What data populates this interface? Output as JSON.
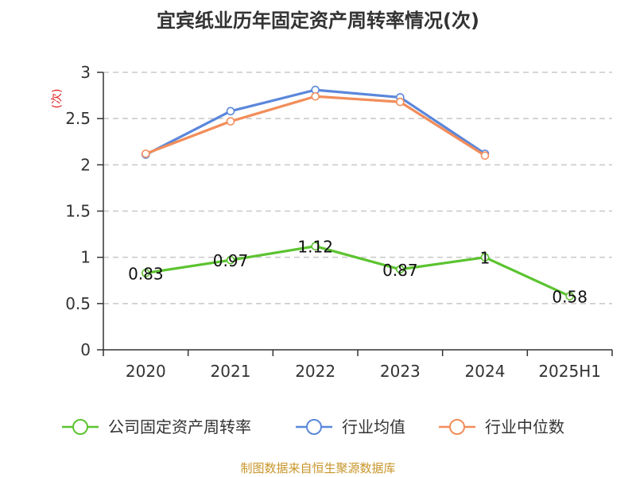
{
  "chart_data": {
    "type": "line",
    "title": "宜宾纸业历年固定资产周转率情况(次)",
    "ylabel": "(次)",
    "xlabel": "",
    "categories": [
      "2020",
      "2021",
      "2022",
      "2023",
      "2024",
      "2025H1"
    ],
    "ylim": [
      0,
      3
    ],
    "yticks": [
      0,
      0.5,
      1,
      1.5,
      2,
      2.5,
      3
    ],
    "ytick_labels": [
      "0",
      "0.5",
      "1",
      "1.5",
      "2",
      "2.5",
      "3"
    ],
    "grid": true,
    "legend_position": "bottom",
    "series": [
      {
        "name": "公司固定资产周转率",
        "color": "#5cc330",
        "values": [
          0.83,
          0.97,
          1.12,
          0.87,
          1.0,
          0.58
        ],
        "labels": [
          "0.83",
          "0.97",
          "1.12",
          "0.87",
          "1",
          "0.58"
        ]
      },
      {
        "name": "行业均值",
        "color": "#5b87db",
        "values": [
          2.11,
          2.58,
          2.81,
          2.73,
          2.12,
          null
        ]
      },
      {
        "name": "行业中位数",
        "color": "#f28d5a",
        "values": [
          2.12,
          2.47,
          2.74,
          2.68,
          2.1,
          null
        ]
      }
    ],
    "source": "制图数据来自恒生聚源数据库"
  }
}
